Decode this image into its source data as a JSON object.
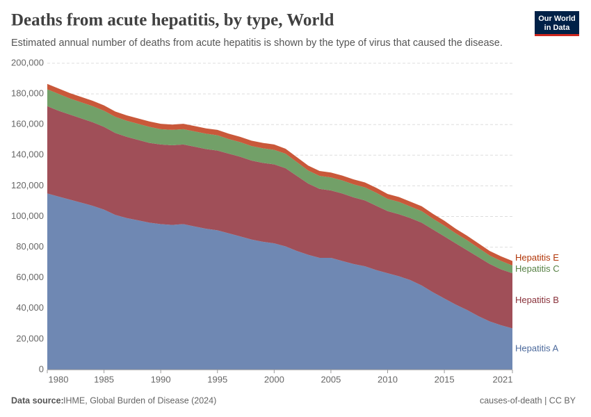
{
  "chart_data": {
    "type": "stacked-area",
    "title": "Deaths from acute hepatitis, by type, World",
    "subtitle": "Estimated annual number of deaths from acute hepatitis is shown by the type of virus that caused the disease.",
    "logo": [
      "Our World",
      "in Data"
    ],
    "source_label": "Data source:",
    "source": "IHME, Global Burden of Disease (2024)",
    "footer_right": "causes-of-death | CC BY",
    "x": [
      1980,
      1981,
      1982,
      1983,
      1984,
      1985,
      1986,
      1987,
      1988,
      1989,
      1990,
      1991,
      1992,
      1993,
      1994,
      1995,
      1996,
      1997,
      1998,
      1999,
      2000,
      2001,
      2002,
      2003,
      2004,
      2005,
      2006,
      2007,
      2008,
      2009,
      2010,
      2011,
      2012,
      2013,
      2014,
      2015,
      2016,
      2017,
      2018,
      2019,
      2020,
      2021
    ],
    "xlim": [
      1980,
      2021
    ],
    "xticks": [
      1980,
      1985,
      1990,
      1995,
      2000,
      2005,
      2010,
      2015,
      2021
    ],
    "ylim": [
      0,
      200000
    ],
    "yticks": [
      0,
      {
        "value": 20000,
        "label": "20,000"
      },
      {
        "value": 40000,
        "label": "40,000"
      },
      {
        "value": 60000,
        "label": "60,000"
      },
      {
        "value": 80000,
        "label": "80,000"
      },
      {
        "value": 100000,
        "label": "100,000"
      },
      {
        "value": 120000,
        "label": "120,000"
      },
      {
        "value": 140000,
        "label": "140,000"
      },
      {
        "value": 160000,
        "label": "160,000"
      },
      {
        "value": 180000,
        "label": "180,000"
      },
      {
        "value": 200000,
        "label": "200,000"
      }
    ],
    "grid": true,
    "series": [
      {
        "name": "Hepatitis A",
        "color": "#6f88b3",
        "label_color": "#4c6a9c",
        "values": [
          115000,
          113000,
          111000,
          109000,
          107000,
          104500,
          101000,
          99000,
          97500,
          96000,
          95000,
          94500,
          95000,
          93500,
          92000,
          91000,
          89000,
          87000,
          85000,
          83500,
          82500,
          80500,
          77500,
          75000,
          73000,
          73000,
          71000,
          69000,
          67500,
          65000,
          63000,
          61000,
          58500,
          55000,
          50500,
          46500,
          42500,
          39000,
          35000,
          31500,
          29000,
          27000
        ]
      },
      {
        "name": "Hepatitis B",
        "color": "#a04f58",
        "label_color": "#883039",
        "values": [
          57000,
          56000,
          55500,
          55000,
          54500,
          54000,
          53500,
          53000,
          52500,
          52000,
          52000,
          52000,
          52000,
          52000,
          52000,
          52000,
          52000,
          52000,
          51500,
          51500,
          51500,
          51000,
          49000,
          46500,
          45000,
          44000,
          44000,
          43500,
          43000,
          42000,
          40500,
          40500,
          40500,
          41000,
          41000,
          40500,
          40000,
          39000,
          38500,
          37500,
          36500,
          36000
        ]
      },
      {
        "name": "Hepatitis C",
        "color": "#72a068",
        "label_color": "#578145",
        "values": [
          11000,
          11000,
          10500,
          10500,
          10500,
          10500,
          10500,
          10500,
          10500,
          10500,
          10000,
          10000,
          10000,
          10000,
          10000,
          10000,
          9500,
          9500,
          9500,
          9500,
          9500,
          9500,
          9000,
          8500,
          8500,
          8500,
          8500,
          8500,
          8500,
          8500,
          8000,
          8000,
          7500,
          7500,
          7000,
          7000,
          6500,
          6500,
          6000,
          5500,
          5500,
          5000
        ]
      },
      {
        "name": "Hepatitis E",
        "color": "#c9583a",
        "label_color": "#b13507",
        "values": [
          3500,
          3500,
          3500,
          3500,
          3500,
          3500,
          3500,
          3500,
          3500,
          3500,
          3500,
          3500,
          3500,
          3500,
          3500,
          3500,
          3500,
          3500,
          3500,
          3500,
          3500,
          3200,
          3200,
          3200,
          3200,
          3200,
          3200,
          3200,
          3200,
          3200,
          3200,
          3200,
          3200,
          3200,
          3200,
          3200,
          3000,
          3000,
          3000,
          3000,
          3000,
          3000
        ]
      }
    ]
  }
}
